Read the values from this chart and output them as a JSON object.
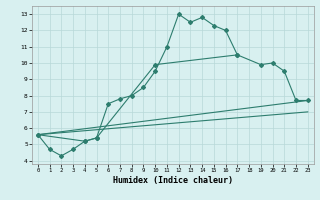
{
  "line1_x": [
    0,
    1,
    2,
    3,
    4,
    5,
    6,
    7,
    8,
    9,
    10,
    11,
    12,
    13,
    14,
    15,
    16,
    17
  ],
  "line1_y": [
    5.6,
    4.7,
    4.3,
    4.7,
    5.2,
    5.4,
    7.5,
    7.8,
    8.0,
    8.5,
    9.5,
    11.0,
    13.0,
    12.5,
    12.8,
    12.3,
    12.0,
    10.5
  ],
  "line2_x": [
    0,
    4,
    5,
    10,
    17,
    19,
    20,
    21,
    22,
    23
  ],
  "line2_y": [
    5.6,
    5.2,
    5.4,
    9.9,
    10.5,
    9.9,
    10.0,
    9.5,
    7.7,
    7.7
  ],
  "line3_x": [
    0,
    23
  ],
  "line3_y": [
    5.6,
    7.7
  ],
  "line4_x": [
    0,
    23
  ],
  "line4_y": [
    5.6,
    7.0
  ],
  "color": "#2d7d6e",
  "bg_color": "#d8f0f0",
  "grid_color": "#b8d8d8",
  "xlabel": "Humidex (Indice chaleur)",
  "xlim": [
    -0.5,
    23.5
  ],
  "ylim": [
    3.8,
    13.5
  ],
  "yticks": [
    4,
    5,
    6,
    7,
    8,
    9,
    10,
    11,
    12,
    13
  ],
  "xticks": [
    0,
    1,
    2,
    3,
    4,
    5,
    6,
    7,
    8,
    9,
    10,
    11,
    12,
    13,
    14,
    15,
    16,
    17,
    18,
    19,
    20,
    21,
    22,
    23
  ]
}
